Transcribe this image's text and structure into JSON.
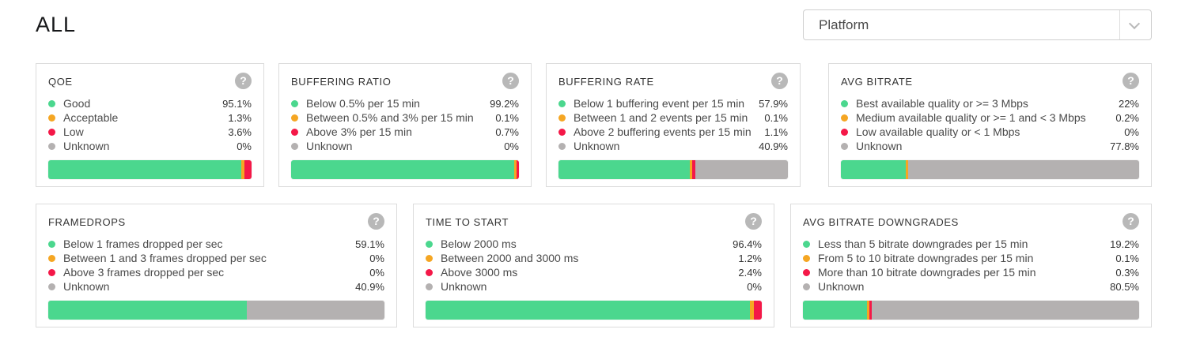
{
  "header": {
    "title": "ALL"
  },
  "platform_filter": {
    "label": "Platform"
  },
  "icons": {
    "help_glyph": "?"
  },
  "colors": {
    "good": "#4bd78e",
    "acceptable": "#f5a623",
    "bad": "#f41848",
    "unknown": "#b4b1b1"
  },
  "cards": [
    {
      "title": "QOE",
      "rows": [
        {
          "label": "Good",
          "value": "95.1%",
          "pct": 95.1,
          "color": "good"
        },
        {
          "label": "Acceptable",
          "value": "1.3%",
          "pct": 1.3,
          "color": "acceptable"
        },
        {
          "label": "Low",
          "value": "3.6%",
          "pct": 3.6,
          "color": "bad"
        },
        {
          "label": "Unknown",
          "value": "0%",
          "pct": 0,
          "color": "unknown"
        }
      ]
    },
    {
      "title": "BUFFERING RATIO",
      "rows": [
        {
          "label": "Below 0.5% per 15 min",
          "value": "99.2%",
          "pct": 99.2,
          "color": "good"
        },
        {
          "label": "Between 0.5% and 3% per 15 min",
          "value": "0.1%",
          "pct": 0.1,
          "color": "acceptable"
        },
        {
          "label": "Above 3% per 15 min",
          "value": "0.7%",
          "pct": 0.7,
          "color": "bad"
        },
        {
          "label": "Unknown",
          "value": "0%",
          "pct": 0,
          "color": "unknown"
        }
      ]
    },
    {
      "title": "BUFFERING RATE",
      "rows": [
        {
          "label": "Below 1 buffering event per 15 min",
          "value": "57.9%",
          "pct": 57.9,
          "color": "good"
        },
        {
          "label": "Between 1 and 2 events per 15 min",
          "value": "0.1%",
          "pct": 0.1,
          "color": "acceptable"
        },
        {
          "label": "Above 2 buffering events per 15 min",
          "value": "1.1%",
          "pct": 1.1,
          "color": "bad"
        },
        {
          "label": "Unknown",
          "value": "40.9%",
          "pct": 40.9,
          "color": "unknown"
        }
      ]
    },
    {
      "title": "AVG BITRATE",
      "rows": [
        {
          "label": "Best available quality or >= 3 Mbps",
          "value": "22%",
          "pct": 22,
          "color": "good"
        },
        {
          "label": "Medium available quality or >= 1 and < 3 Mbps",
          "value": "0.2%",
          "pct": 0.2,
          "color": "acceptable"
        },
        {
          "label": "Low available quality or < 1 Mbps",
          "value": "0%",
          "pct": 0,
          "color": "bad"
        },
        {
          "label": "Unknown",
          "value": "77.8%",
          "pct": 77.8,
          "color": "unknown"
        }
      ]
    },
    {
      "title": "FRAMEDROPS",
      "rows": [
        {
          "label": "Below 1 frames dropped per sec",
          "value": "59.1%",
          "pct": 59.1,
          "color": "good"
        },
        {
          "label": "Between 1 and 3 frames dropped per sec",
          "value": "0%",
          "pct": 0,
          "color": "acceptable"
        },
        {
          "label": "Above 3 frames dropped per sec",
          "value": "0%",
          "pct": 0,
          "color": "bad"
        },
        {
          "label": "Unknown",
          "value": "40.9%",
          "pct": 40.9,
          "color": "unknown"
        }
      ]
    },
    {
      "title": "TIME TO START",
      "rows": [
        {
          "label": "Below 2000 ms",
          "value": "96.4%",
          "pct": 96.4,
          "color": "good"
        },
        {
          "label": "Between 2000 and 3000 ms",
          "value": "1.2%",
          "pct": 1.2,
          "color": "acceptable"
        },
        {
          "label": "Above 3000 ms",
          "value": "2.4%",
          "pct": 2.4,
          "color": "bad"
        },
        {
          "label": "Unknown",
          "value": "0%",
          "pct": 0,
          "color": "unknown"
        }
      ]
    },
    {
      "title": "AVG BITRATE DOWNGRADES",
      "rows": [
        {
          "label": "Less than 5 bitrate downgrades per 15 min",
          "value": "19.2%",
          "pct": 19.2,
          "color": "good"
        },
        {
          "label": "From 5 to 10 bitrate downgrades per 15 min",
          "value": "0.1%",
          "pct": 0.1,
          "color": "acceptable"
        },
        {
          "label": "More than 10 bitrate downgrades per 15 min",
          "value": "0.3%",
          "pct": 0.3,
          "color": "bad"
        },
        {
          "label": "Unknown",
          "value": "80.5%",
          "pct": 80.5,
          "color": "unknown"
        }
      ]
    }
  ]
}
